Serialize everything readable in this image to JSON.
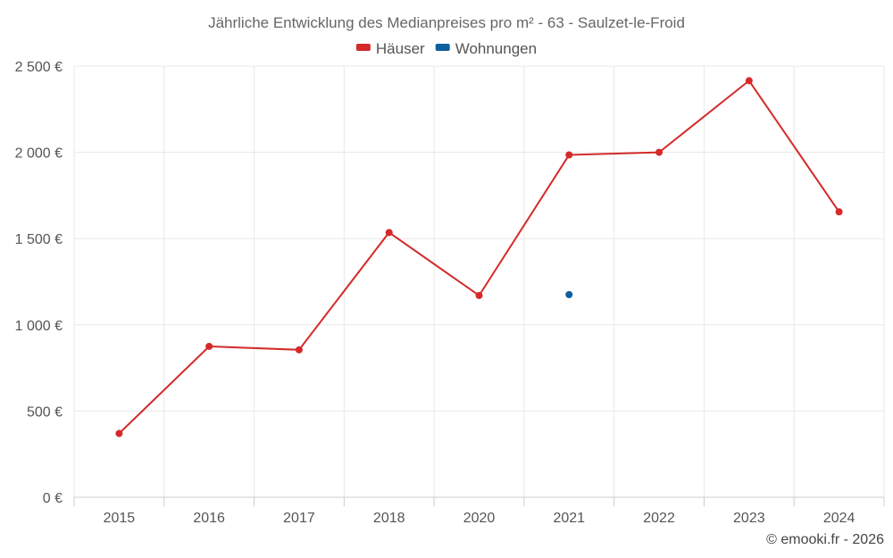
{
  "chart_data": {
    "type": "line",
    "title": "Jährliche Entwicklung des Medianpreises pro m² - 63 - Saulzet-le-Froid",
    "categories": [
      "2015",
      "2016",
      "2017",
      "2018",
      "2020",
      "2021",
      "2022",
      "2023",
      "2024"
    ],
    "ylim": [
      0,
      2500
    ],
    "yticks": [
      0,
      500,
      1000,
      1500,
      2000,
      2500
    ],
    "ytick_labels": [
      "0 €",
      "500 €",
      "1 000 €",
      "1 500 €",
      "2 000 €",
      "2 500 €"
    ],
    "grid": true,
    "legend_position": "top-center",
    "series": [
      {
        "name": "Häuser",
        "color": "#d42a2a",
        "values": [
          370,
          875,
          855,
          1535,
          1170,
          1985,
          2000,
          2415,
          1655
        ]
      },
      {
        "name": "Wohnungen",
        "color": "#0e5f9e",
        "values": [
          null,
          null,
          null,
          null,
          null,
          1175,
          null,
          null,
          null
        ]
      }
    ]
  },
  "credit": "© emooki.fr - 2026"
}
